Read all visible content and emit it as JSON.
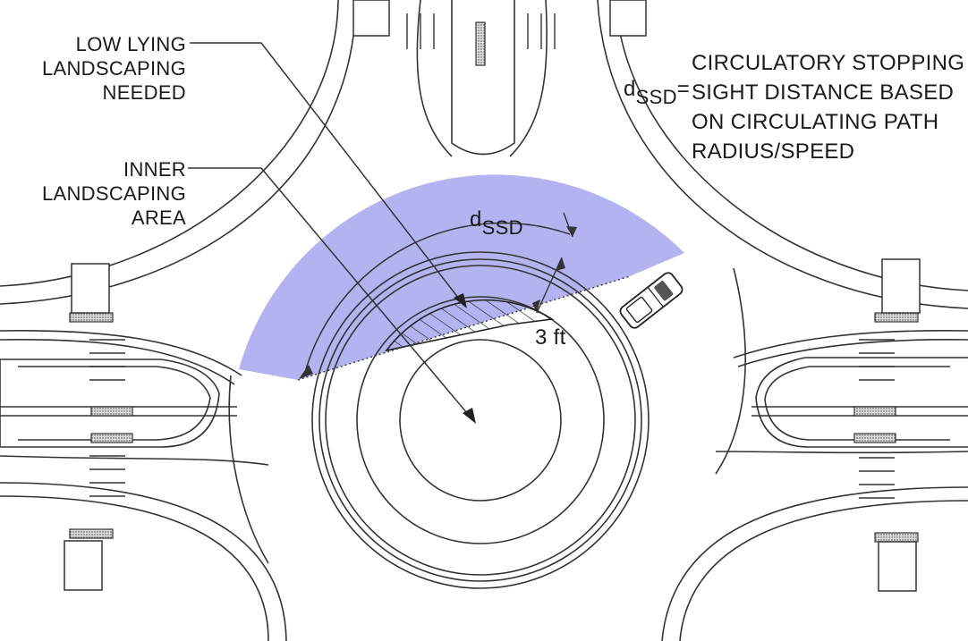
{
  "labels": {
    "low_lying": [
      "LOW LYING",
      "LANDSCAPING",
      "NEEDED"
    ],
    "inner_area": [
      "INNER",
      "LANDSCAPING",
      "AREA"
    ],
    "definition": {
      "symbol": "d",
      "subscript": "SSD",
      "equals": "=",
      "lines": [
        "CIRCULATORY STOPPING",
        "SIGHT DISTANCE BASED",
        "ON CIRCULATING PATH",
        "RADIUS/SPEED"
      ]
    },
    "arc_label": {
      "symbol": "d",
      "subscript": "SSD"
    },
    "offset_label": "3 ft"
  },
  "colors": {
    "sight_zone": "#b3b3f2",
    "linework": "#333333",
    "hatch": "#222222"
  },
  "icons": [
    "vehicle-icon",
    "arrow-head-icon"
  ]
}
